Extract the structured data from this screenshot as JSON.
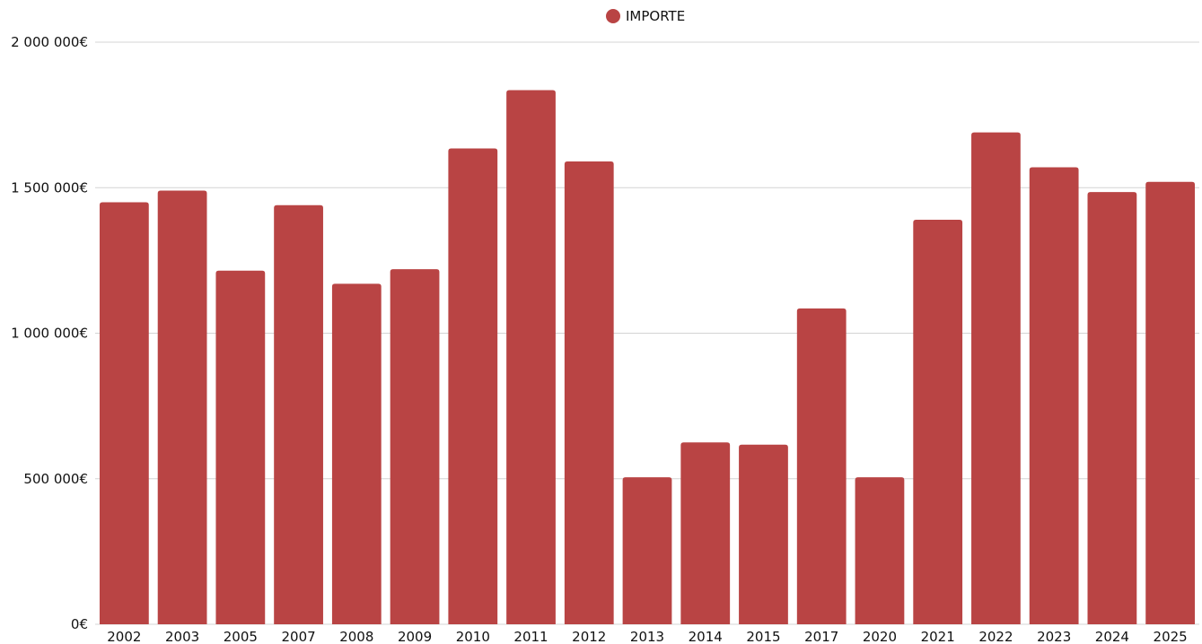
{
  "chart_data": {
    "type": "bar",
    "categories": [
      "2002",
      "2003",
      "2005",
      "2007",
      "2008",
      "2009",
      "2010",
      "2011",
      "2012",
      "2013",
      "2014",
      "2015",
      "2017",
      "2020",
      "2021",
      "2022",
      "2023",
      "2024",
      "2025"
    ],
    "series": [
      {
        "name": "IMPORTE",
        "values": [
          1450000,
          1490000,
          1215000,
          1440000,
          1170000,
          1220000,
          1635000,
          1835000,
          1590000,
          505000,
          625000,
          617000,
          1085000,
          505000,
          1390000,
          1690000,
          1570000,
          1485000,
          1520000
        ]
      }
    ],
    "ylim": [
      0,
      2000000
    ],
    "yticks": [
      0,
      500000,
      1000000,
      1500000,
      2000000
    ],
    "ytick_labels": [
      "0€",
      "500 000€",
      "1 000 000€",
      "1 500 000€",
      "2 000 000€"
    ],
    "title": "",
    "xlabel": "",
    "ylabel": "",
    "grid": true,
    "legend_position": "top-center"
  },
  "colors": {
    "bar": "#b94444",
    "grid": "#d4d4d4",
    "text": "#111111"
  }
}
